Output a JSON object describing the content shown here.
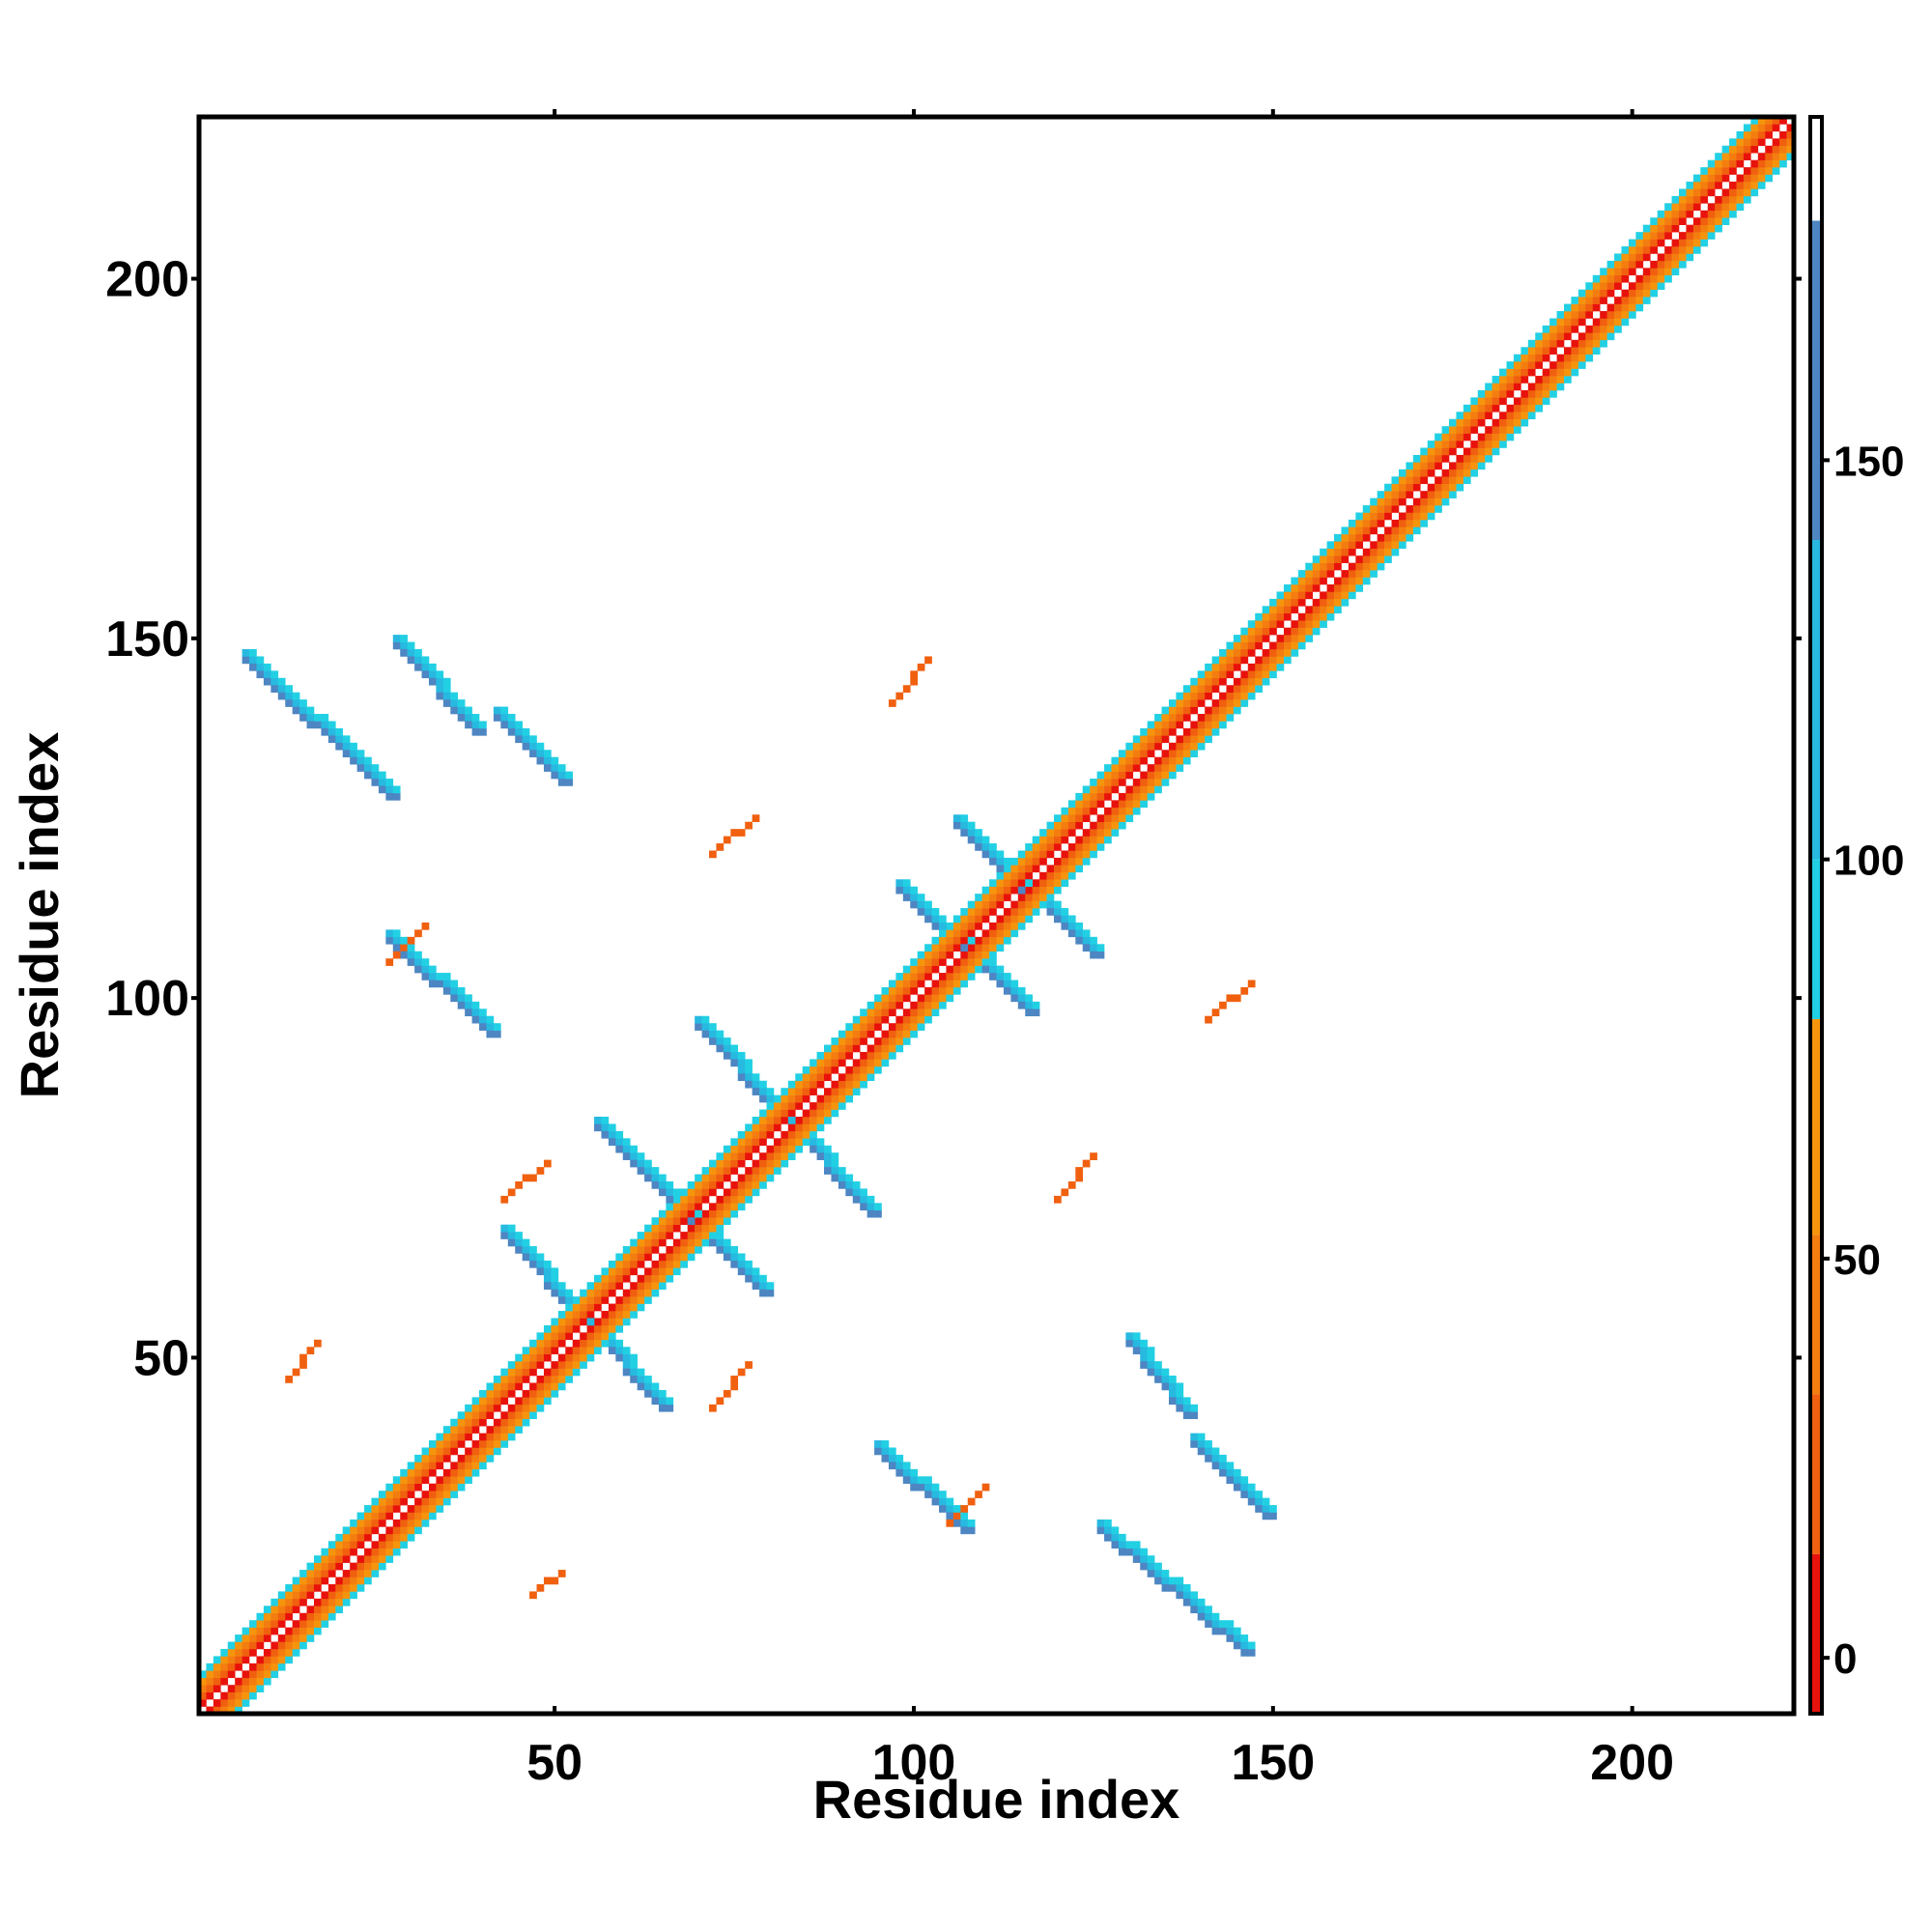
{
  "chart_data": {
    "type": "heatmap",
    "title": "",
    "xlabel": "Residue index",
    "ylabel": "Residue index",
    "xlim": [
      1,
      222
    ],
    "ylim": [
      1,
      222
    ],
    "x_ticks": [
      50,
      100,
      150,
      200
    ],
    "y_ticks": [
      50,
      100,
      150,
      200
    ],
    "grid": false,
    "symmetric": true,
    "colorbar": {
      "range": [
        -7,
        193
      ],
      "ticks": [
        0,
        50,
        100,
        150
      ],
      "bands": [
        {
          "from": -7,
          "to": 13,
          "color": "#e8120c"
        },
        {
          "from": 13,
          "to": 33,
          "color": "#f0600f"
        },
        {
          "from": 33,
          "to": 53,
          "color": "#f47d10"
        },
        {
          "from": 53,
          "to": 80,
          "color": "#f6950c"
        },
        {
          "from": 80,
          "to": 100,
          "color": "#22d0e4"
        },
        {
          "from": 100,
          "to": 140,
          "color": "#27b9e0"
        },
        {
          "from": 140,
          "to": 180,
          "color": "#4d86c2"
        },
        {
          "from": 180,
          "to": 193,
          "color": "#ffffff"
        }
      ]
    },
    "diagonal_band": {
      "from": 1,
      "to": 222
    },
    "features": [
      {
        "name": "beta-anti-1",
        "kind": "anti",
        "x": [
          43,
          65
        ],
        "y": [
          67,
          43
        ],
        "value": 160
      },
      {
        "name": "beta-anti-2",
        "kind": "anti",
        "x": [
          56,
          79
        ],
        "y": [
          82,
          59
        ],
        "value": 160
      },
      {
        "name": "beta-anti-3",
        "kind": "anti",
        "x": [
          70,
          94
        ],
        "y": [
          96,
          70
        ],
        "value": 160
      },
      {
        "name": "beta-anti-4",
        "kind": "anti",
        "x": [
          98,
          116
        ],
        "y": [
          115,
          98
        ],
        "value": 160
      },
      {
        "name": "beta-anti-5",
        "kind": "anti",
        "x": [
          106,
          125
        ],
        "y": [
          124,
          106
        ],
        "value": 160
      },
      {
        "name": "beta-anti-6",
        "kind": "anti",
        "x": [
          27,
          41
        ],
        "y": [
          108,
          95
        ],
        "value": 160
      },
      {
        "name": "beta-anti-7",
        "kind": "anti",
        "x": [
          7,
          27
        ],
        "y": [
          147,
          128
        ],
        "value": 160
      },
      {
        "name": "beta-anti-8",
        "kind": "anti",
        "x": [
          28,
          39
        ],
        "y": [
          149,
          137
        ],
        "value": 160
      },
      {
        "name": "beta-anti-9",
        "kind": "anti",
        "x": [
          42,
          51
        ],
        "y": [
          139,
          130
        ],
        "value": 160
      },
      {
        "name": "ortho-1",
        "kind": "anti",
        "x": [
          95,
          107
        ],
        "y": [
          37,
          26
        ],
        "value": 160
      },
      {
        "name": "ortho-2",
        "kind": "anti",
        "x": [
          130,
          138
        ],
        "y": [
          52,
          42
        ],
        "value": 160
      },
      {
        "name": "ortho-3",
        "kind": "anti",
        "x": [
          139,
          149
        ],
        "y": [
          38,
          28
        ],
        "value": 160
      },
      {
        "name": "ortho-4",
        "kind": "anti",
        "x": [
          126,
          146
        ],
        "y": [
          26,
          9
        ],
        "value": 160
      },
      {
        "name": "orange-1",
        "kind": "short",
        "x": [
          13,
          17
        ],
        "y": [
          47,
          52
        ],
        "value": 20
      },
      {
        "name": "orange-2",
        "kind": "short",
        "x": [
          47,
          51
        ],
        "y": [
          17,
          20
        ],
        "value": 20
      },
      {
        "name": "orange-3",
        "kind": "short",
        "x": [
          43,
          49
        ],
        "y": [
          72,
          77
        ],
        "value": 20
      },
      {
        "name": "orange-4",
        "kind": "short",
        "x": [
          72,
          77
        ],
        "y": [
          43,
          49
        ],
        "value": 20
      },
      {
        "name": "orange-5",
        "kind": "short",
        "x": [
          27,
          32
        ],
        "y": [
          105,
          110
        ],
        "value": 20
      },
      {
        "name": "orange-6",
        "kind": "short",
        "x": [
          105,
          110
        ],
        "y": [
          27,
          32
        ],
        "value": 20
      },
      {
        "name": "orange-7",
        "kind": "short",
        "x": [
          72,
          78
        ],
        "y": [
          120,
          125
        ],
        "value": 20
      },
      {
        "name": "orange-8",
        "kind": "short",
        "x": [
          120,
          125
        ],
        "y": [
          72,
          78
        ],
        "value": 20
      },
      {
        "name": "orange-9",
        "kind": "short",
        "x": [
          97,
          102
        ],
        "y": [
          141,
          147
        ],
        "value": 20
      },
      {
        "name": "orange-10",
        "kind": "short",
        "x": [
          141,
          147
        ],
        "y": [
          97,
          102
        ],
        "value": 20
      }
    ]
  }
}
